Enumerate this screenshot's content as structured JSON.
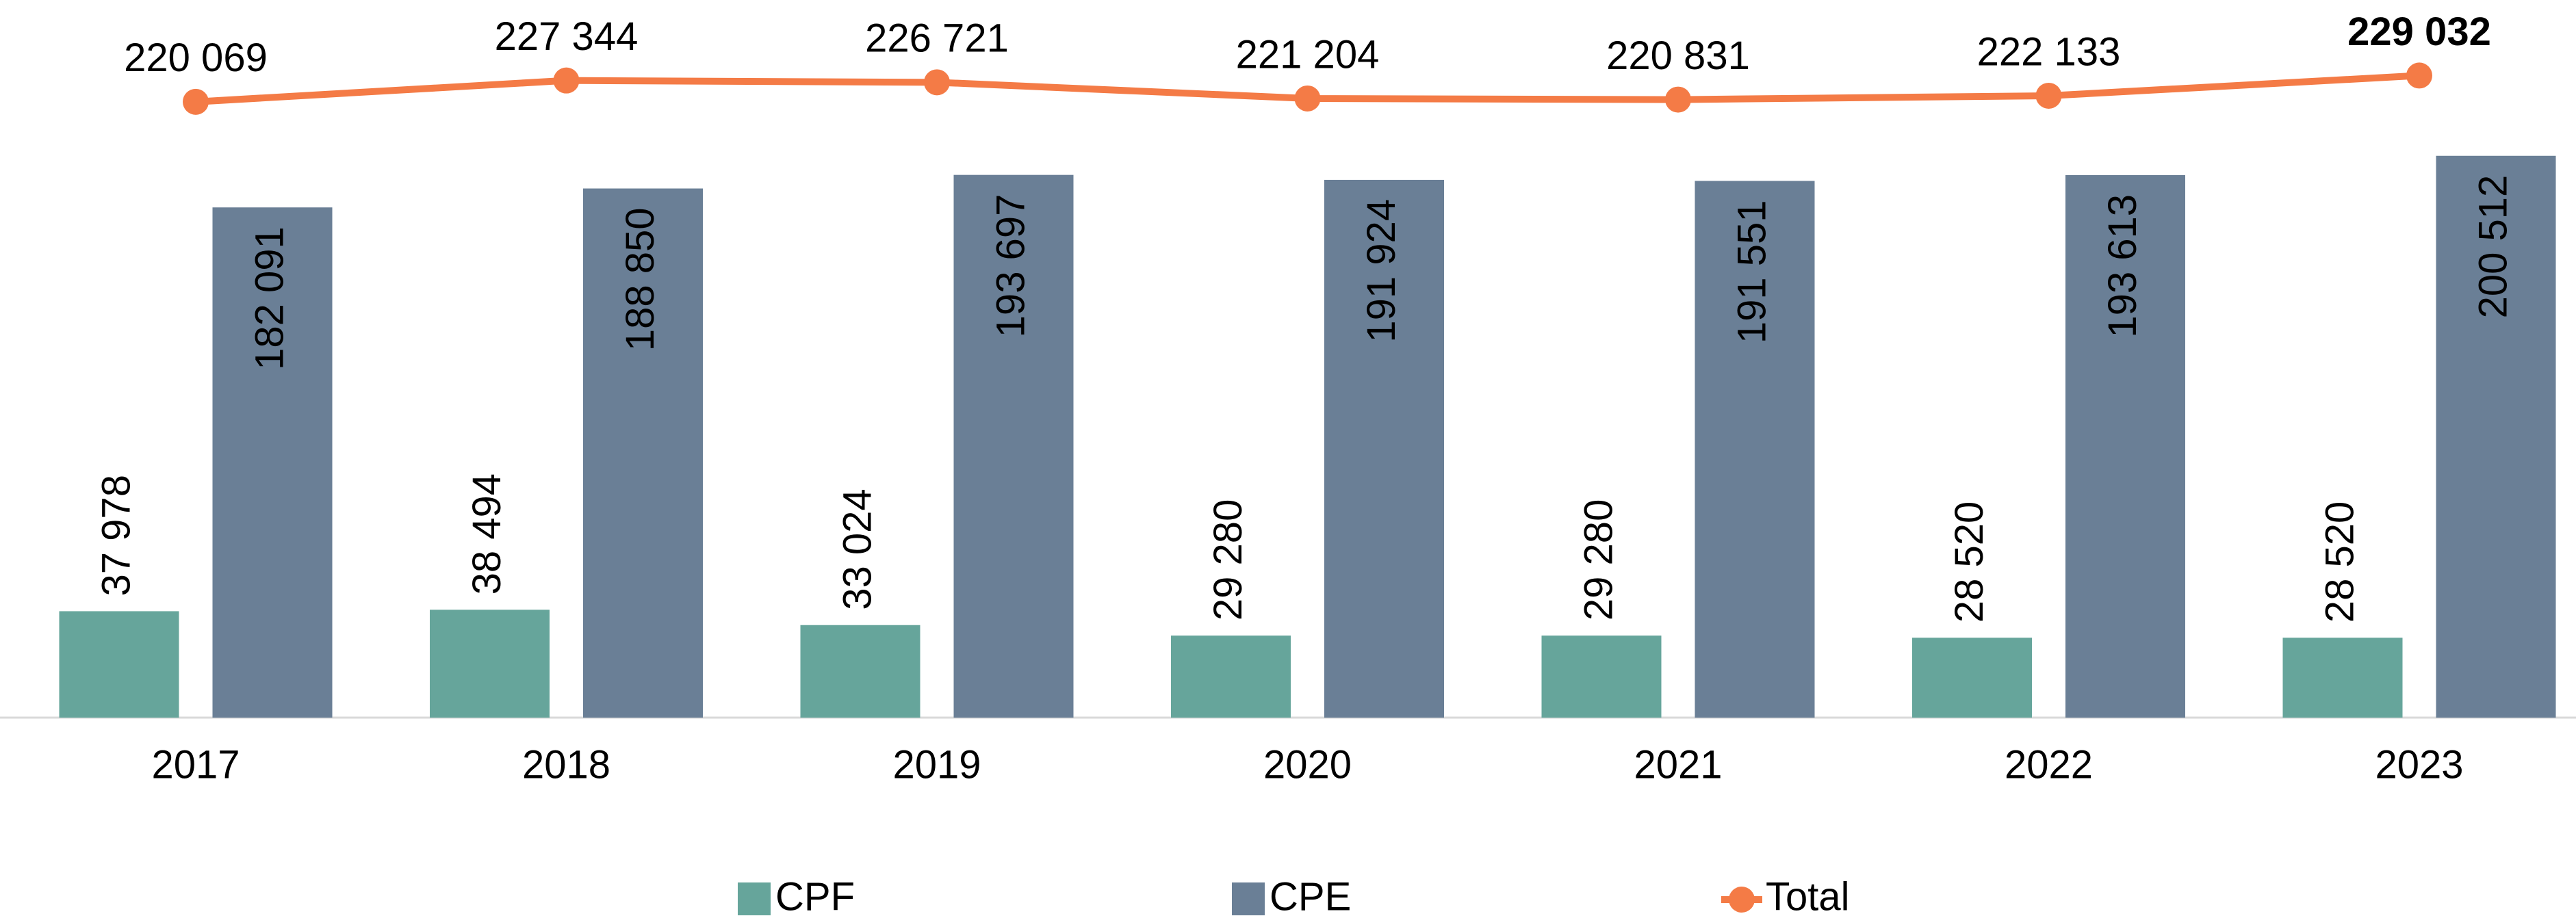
{
  "chart_data": {
    "type": "bar",
    "categories": [
      "2017",
      "2018",
      "2019",
      "2020",
      "2021",
      "2022",
      "2023"
    ],
    "series": [
      {
        "name": "CPF",
        "color": "#66a59b",
        "values": [
          37978,
          38494,
          33024,
          29280,
          29280,
          28520,
          28520
        ],
        "value_labels": [
          "37 978",
          "38 494",
          "33 024",
          "29 280",
          "29 280",
          "28 520",
          "28 520"
        ]
      },
      {
        "name": "CPE",
        "color": "#6a7f96",
        "values": [
          182091,
          188850,
          193697,
          191924,
          191551,
          193613,
          200512
        ],
        "value_labels": [
          "182 091",
          "188 850",
          "193 697",
          "191 924",
          "191 551",
          "193 613",
          "200 512"
        ]
      },
      {
        "name": "Total",
        "type": "line",
        "axis": "y2",
        "color": "#f47b46",
        "values": [
          220069,
          227344,
          226721,
          221204,
          220831,
          222133,
          229032
        ],
        "value_labels": [
          "220 069",
          "227 344",
          "226 721",
          "221 204",
          "220 831",
          "222 133",
          "229 032"
        ]
      }
    ],
    "ylim": [
      0,
      244400
    ],
    "y2lim": [
      10000,
      243600
    ],
    "legend": "bottom"
  }
}
